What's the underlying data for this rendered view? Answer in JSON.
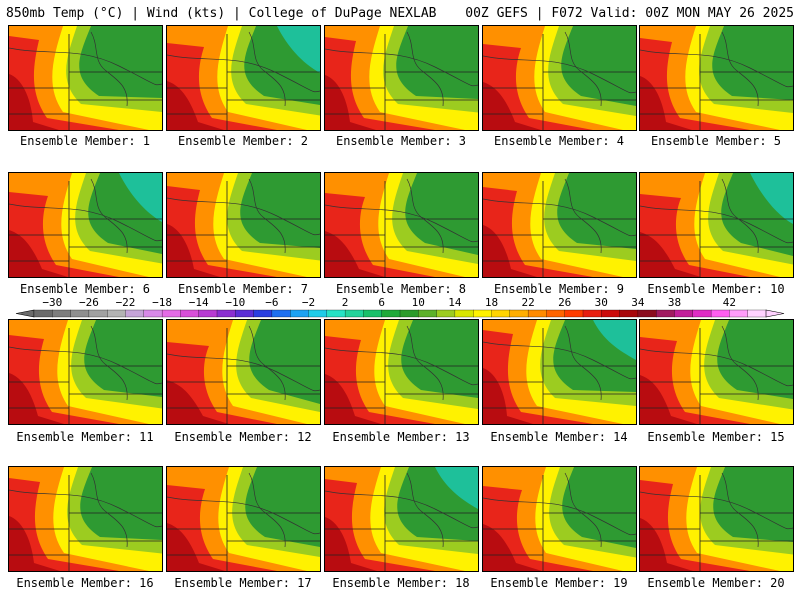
{
  "header": {
    "left": "850mb Temp (°C) | Wind (kts) | College of DuPage NEXLAB",
    "right": "00Z GEFS | F072 Valid: 00Z MON MAY 26 2025"
  },
  "member_label_prefix": "Ensemble Member: ",
  "members": [
    "1",
    "2",
    "3",
    "4",
    "5",
    "6",
    "7",
    "8",
    "9",
    "10",
    "11",
    "12",
    "13",
    "14",
    "15",
    "16",
    "17",
    "18",
    "19",
    "20"
  ],
  "member_labels": [
    "Ensemble Member: 1",
    "Ensemble Member: 2",
    "Ensemble Member: 3",
    "Ensemble Member: 4",
    "Ensemble Member: 5",
    "Ensemble Member: 6",
    "Ensemble Member: 7",
    "Ensemble Member: 8",
    "Ensemble Member: 9",
    "Ensemble Member: 10",
    "Ensemble Member: 11",
    "Ensemble Member: 12",
    "Ensemble Member: 13",
    "Ensemble Member: 14",
    "Ensemble Member: 15",
    "Ensemble Member: 16",
    "Ensemble Member: 17",
    "Ensemble Member: 18",
    "Ensemble Member: 19",
    "Ensemble Member: 20"
  ],
  "colorbar": {
    "tick_labels": [
      "−30",
      "−26",
      "−22",
      "−18",
      "−14",
      "−10",
      "−6",
      "−2",
      "2",
      "6",
      "10",
      "14",
      "18",
      "22",
      "26",
      "30",
      "34",
      "38",
      "42"
    ],
    "colors": [
      "#6b6b6b",
      "#7e7e7e",
      "#8f8f8f",
      "#a1a1a1",
      "#b3b3b3",
      "#c6a4d8",
      "#d889e8",
      "#e46be6",
      "#d84fd8",
      "#b73bd2",
      "#8a2fd0",
      "#5b2ed6",
      "#2a3ee0",
      "#1e6ff0",
      "#1ca2f2",
      "#1fcce8",
      "#26e2c4",
      "#22d39a",
      "#19c06a",
      "#1faa3a",
      "#2c9b2a",
      "#5db12a",
      "#9ccc20",
      "#d8e600",
      "#fff200",
      "#ffd400",
      "#ffae00",
      "#ff8a00",
      "#ff6400",
      "#ff3c00",
      "#e81e10",
      "#cc0a0a",
      "#a8060a",
      "#8a0c1e",
      "#a01a60",
      "#c21e9a",
      "#e02cc4",
      "#ff5ef0",
      "#ff9cfa",
      "#ffd2ff"
    ]
  },
  "colors": {
    "background": "#ffffff",
    "warm": "#e8251a",
    "cool": "#2e9a32"
  }
}
